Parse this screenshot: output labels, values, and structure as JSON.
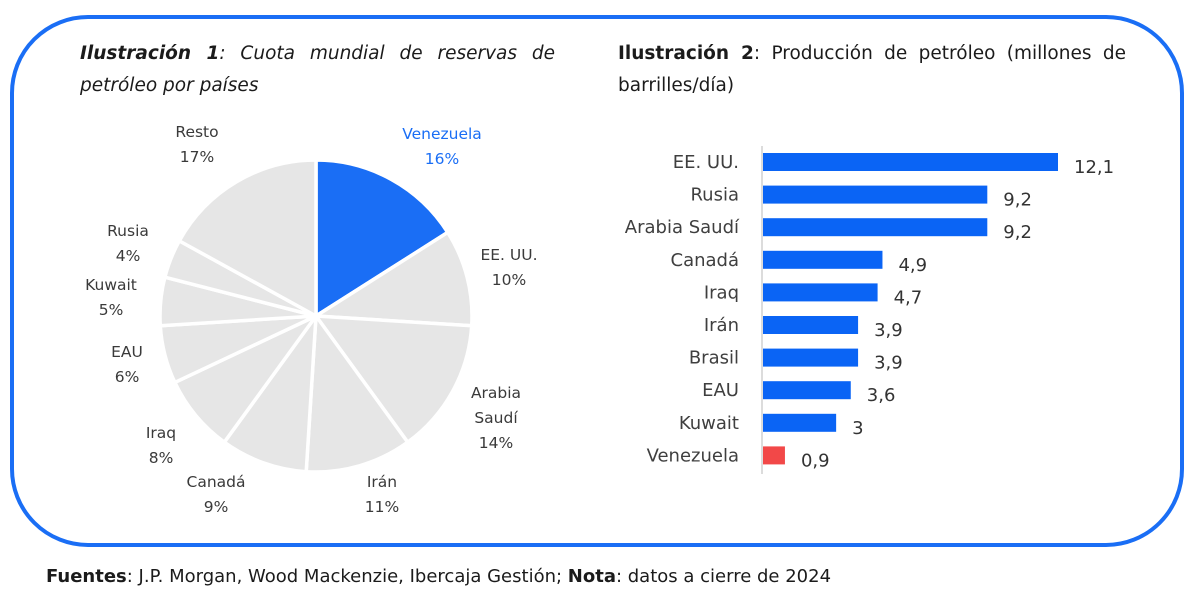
{
  "colors": {
    "frame": "#1a6ef5",
    "highlight": "#1a6ef5",
    "pie_other": "#e6e6e6",
    "bar": "#0a64f5",
    "bar_highlight": "#f24848"
  },
  "chart_data": [
    {
      "type": "pie",
      "title_bold": "Ilustración 1",
      "title_rest": ": Cuota mundial de reservas de petróleo por países",
      "start": "top, clockwise",
      "slices": [
        {
          "label": "Venezuela",
          "label_lines": [
            "Venezuela"
          ],
          "value": 16,
          "pct": "16%",
          "highlight": true
        },
        {
          "label": "EE. UU.",
          "label_lines": [
            "EE. UU."
          ],
          "value": 10,
          "pct": "10%",
          "highlight": false
        },
        {
          "label": "Arabia Saudí",
          "label_lines": [
            "Arabia",
            "Saudí"
          ],
          "value": 14,
          "pct": "14%",
          "highlight": false
        },
        {
          "label": "Irán",
          "label_lines": [
            "Irán"
          ],
          "value": 11,
          "pct": "11%",
          "highlight": false
        },
        {
          "label": "Canadá",
          "label_lines": [
            "Canadá"
          ],
          "value": 9,
          "pct": "9%",
          "highlight": false
        },
        {
          "label": "Iraq",
          "label_lines": [
            "Iraq"
          ],
          "value": 8,
          "pct": "8%",
          "highlight": false
        },
        {
          "label": "EAU",
          "label_lines": [
            "EAU"
          ],
          "value": 6,
          "pct": "6%",
          "highlight": false
        },
        {
          "label": "Kuwait",
          "label_lines": [
            "Kuwait"
          ],
          "value": 5,
          "pct": "5%",
          "highlight": false
        },
        {
          "label": "Rusia",
          "label_lines": [
            "Rusia"
          ],
          "value": 4,
          "pct": "4%",
          "highlight": false
        },
        {
          "label": "Resto",
          "label_lines": [
            "Resto"
          ],
          "value": 17,
          "pct": "17%",
          "highlight": false
        }
      ]
    },
    {
      "type": "bar",
      "orientation": "horizontal",
      "title_bold": "Ilustración 2",
      "title_rest": ": Producción de petróleo (millones de barrilles/día)",
      "unit": "millones de barriles/día",
      "xlim": [
        0,
        12.1
      ],
      "categories": [
        "EE. UU.",
        "Rusia",
        "Arabia Saudí",
        "Canadá",
        "Iraq",
        "Irán",
        "Brasil",
        "EAU",
        "Kuwait",
        "Venezuela"
      ],
      "values": [
        12.1,
        9.2,
        9.2,
        4.9,
        4.7,
        3.9,
        3.9,
        3.6,
        3,
        0.9
      ],
      "value_labels": [
        "12,1",
        "9,2",
        "9,2",
        "4,9",
        "4,7",
        "3,9",
        "3,9",
        "3,6",
        "3",
        "0,9"
      ],
      "highlight": [
        "Venezuela"
      ]
    }
  ],
  "footer": {
    "sources_bold": "Fuentes",
    "sources_text": ": J.P. Morgan, Wood Mackenzie, Ibercaja Gestión; ",
    "note_bold": "Nota",
    "note_text": ": datos a cierre de 2024"
  }
}
